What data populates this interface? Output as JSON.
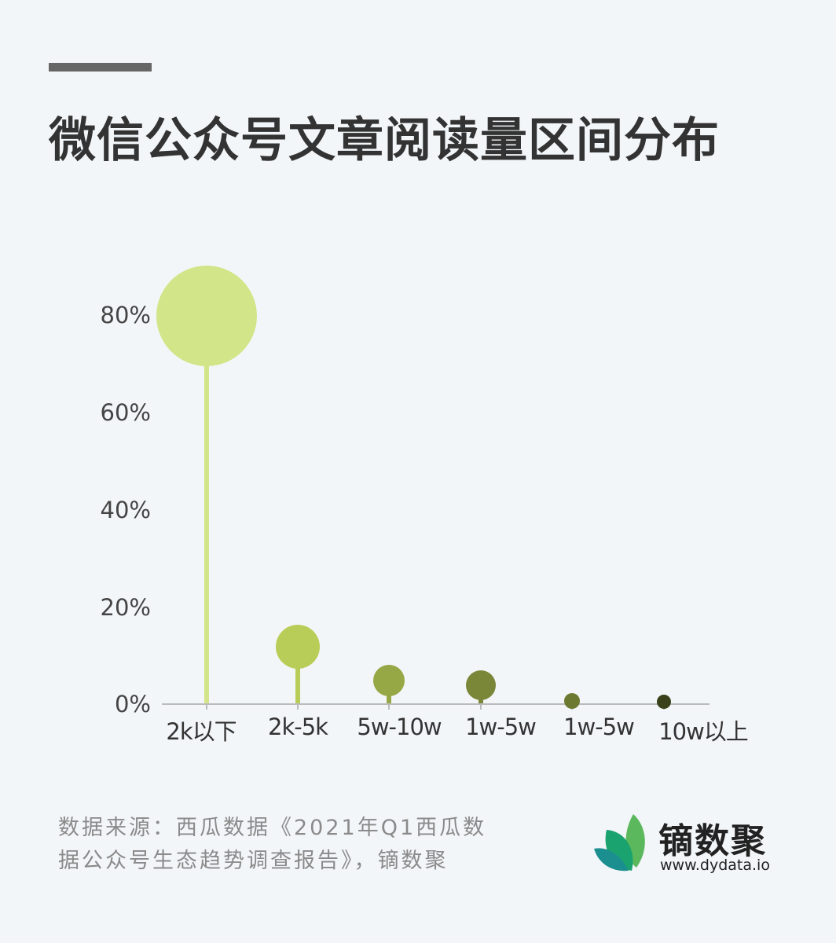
{
  "header": {
    "title": "微信公众号文章阅读量区间分布"
  },
  "chart_data": {
    "type": "lollipop-bubble",
    "title": "微信公众号文章阅读量区间分布",
    "xlabel": "",
    "ylabel": "",
    "ylim": [
      0,
      80
    ],
    "yticks": [
      "0%",
      "20%",
      "40%",
      "60%",
      "80%"
    ],
    "grid": false,
    "legend": "none",
    "categories": [
      "2k以下",
      "2k-5k",
      "5w-10w",
      "1w-5w",
      "1w-5w",
      "10w以上"
    ],
    "values": [
      80,
      11.7,
      4.7,
      3.7,
      0.5,
      0.3
    ],
    "unit": "%",
    "colors": [
      "#d3e589",
      "#b8cd57",
      "#95a845",
      "#7a8638",
      "#6b7a30",
      "#39401a"
    ]
  },
  "footer": {
    "source_line1": "数据来源：西瓜数据《2021年Q1西瓜数",
    "source_line2": "据公众号生态趋势调查报告》，镝数聚",
    "brand_name": "镝数聚",
    "brand_url": "www.dydata.io"
  },
  "colors": {
    "background": "#f3f6f9",
    "title": "#333333",
    "accent_bar": "#666666",
    "axis": "#bbbbbb",
    "source_text": "#8a8a8a",
    "logo_green_light": "#5cb85c",
    "logo_green_mid": "#1aa36f",
    "logo_teal": "#1b8f8f"
  }
}
